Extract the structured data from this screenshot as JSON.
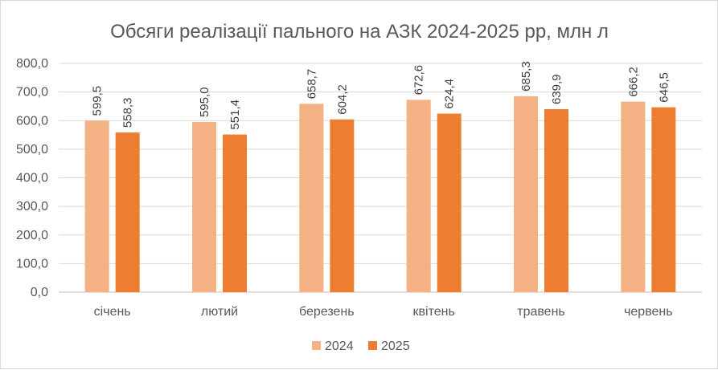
{
  "chart_data": {
    "type": "bar",
    "title": "Обсяги реалізації пального на АЗК 2024-2025 рр, млн л",
    "categories": [
      "січень",
      "лютий",
      "березень",
      "квітень",
      "травень",
      "червень"
    ],
    "series": [
      {
        "name": "2024",
        "color": "#f4b183",
        "values": [
          599.5,
          595.0,
          658.7,
          672.6,
          685.3,
          666.2
        ],
        "labels": [
          "599,5",
          "595,0",
          "658,7",
          "672,6",
          "685,3",
          "666,2"
        ]
      },
      {
        "name": "2025",
        "color": "#ed7d31",
        "values": [
          558.3,
          551.4,
          604.2,
          624.4,
          639.9,
          646.5
        ],
        "labels": [
          "558,3",
          "551,4",
          "604,2",
          "624,4",
          "639,9",
          "646,5"
        ]
      }
    ],
    "ylim": [
      0,
      800
    ],
    "yticks": [
      0,
      100,
      200,
      300,
      400,
      500,
      600,
      700,
      800
    ],
    "ytick_labels": [
      "0,0",
      "100,0",
      "200,0",
      "300,0",
      "400,0",
      "500,0",
      "600,0",
      "700,0",
      "800,0"
    ],
    "grid": true,
    "legend_position": "bottom",
    "xlabel": "",
    "ylabel": ""
  }
}
